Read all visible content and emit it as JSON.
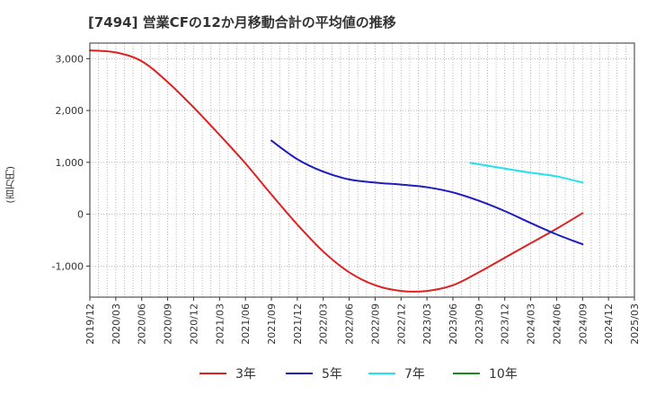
{
  "chart_data": {
    "type": "line",
    "title": "[7494]  営業CFの12か月移動合計の平均値の推移",
    "ylabel": "(百万円)",
    "ylim": [
      -1600,
      3300
    ],
    "yticks": [
      3000,
      2000,
      1000,
      0,
      -1000
    ],
    "ytick_labels": [
      "3,000",
      "2,000",
      "1,000",
      "0",
      "-1,000"
    ],
    "x_range": [
      "2019/12",
      "2025/03"
    ],
    "x_tick_labels": [
      "2019/12",
      "2020/03",
      "2020/06",
      "2020/09",
      "2020/12",
      "2021/03",
      "2021/06",
      "2021/09",
      "2021/12",
      "2022/03",
      "2022/06",
      "2022/09",
      "2022/12",
      "2023/03",
      "2023/06",
      "2023/09",
      "2023/12",
      "2024/03",
      "2024/06",
      "2024/09",
      "2024/12",
      "2025/03"
    ],
    "grid": true,
    "legend_position": "bottom",
    "series": [
      {
        "name": "3年",
        "color": "#e02020",
        "points": [
          [
            "2019/12",
            3160
          ],
          [
            "2020/03",
            3120
          ],
          [
            "2020/06",
            2950
          ],
          [
            "2020/09",
            2550
          ],
          [
            "2020/12",
            2060
          ],
          [
            "2021/03",
            1530
          ],
          [
            "2021/06",
            980
          ],
          [
            "2021/09",
            380
          ],
          [
            "2021/12",
            -200
          ],
          [
            "2022/03",
            -720
          ],
          [
            "2022/06",
            -1120
          ],
          [
            "2022/09",
            -1370
          ],
          [
            "2022/12",
            -1480
          ],
          [
            "2023/03",
            -1480
          ],
          [
            "2023/06",
            -1370
          ],
          [
            "2023/09",
            -1120
          ],
          [
            "2023/12",
            -840
          ],
          [
            "2024/03",
            -560
          ],
          [
            "2024/06",
            -280
          ],
          [
            "2024/09",
            20
          ]
        ]
      },
      {
        "name": "5年",
        "color": "#1c1cc0",
        "points": [
          [
            "2021/09",
            1420
          ],
          [
            "2021/12",
            1060
          ],
          [
            "2022/03",
            820
          ],
          [
            "2022/06",
            670
          ],
          [
            "2022/09",
            610
          ],
          [
            "2022/12",
            570
          ],
          [
            "2023/03",
            520
          ],
          [
            "2023/06",
            420
          ],
          [
            "2023/09",
            260
          ],
          [
            "2023/12",
            60
          ],
          [
            "2024/03",
            -170
          ],
          [
            "2024/06",
            -390
          ],
          [
            "2024/09",
            -580
          ]
        ]
      },
      {
        "name": "7年",
        "color": "#22e0f0",
        "points": [
          [
            "2023/08",
            990
          ],
          [
            "2023/12",
            880
          ],
          [
            "2024/03",
            800
          ],
          [
            "2024/06",
            730
          ],
          [
            "2024/09",
            610
          ]
        ]
      },
      {
        "name": "10年",
        "color": "#1a8a1a",
        "points": []
      }
    ]
  }
}
